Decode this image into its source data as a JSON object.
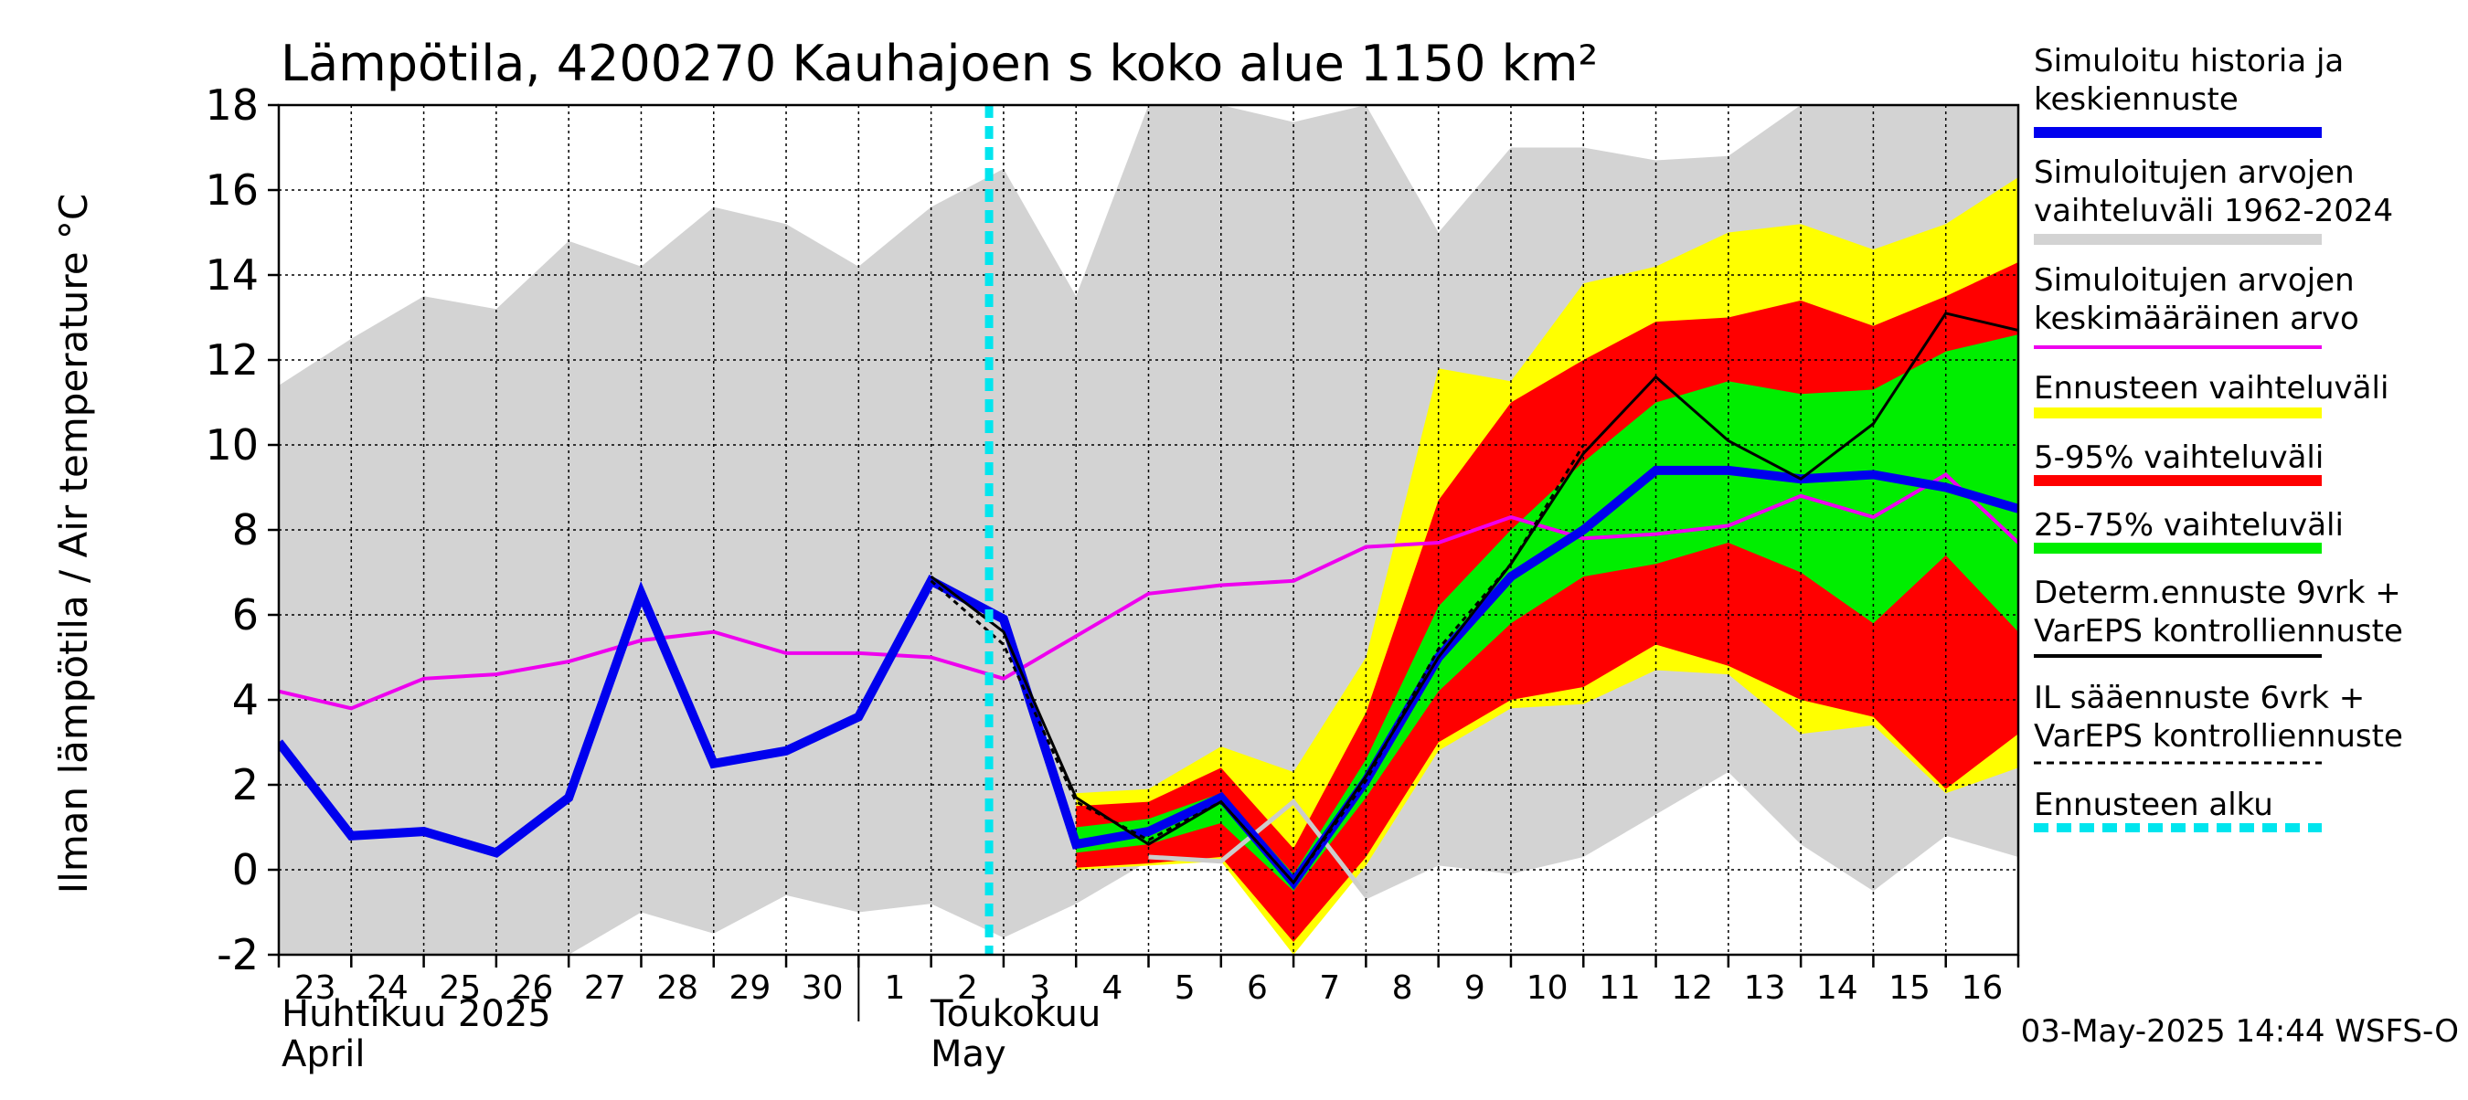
{
  "chart_data": {
    "type": "area",
    "title": "Lämpötila, 4200270 Kauhajoen s koko alue 1150 km²",
    "ylabel": "Ilman lämpötila / Air temperature    °C",
    "ylim": [
      -2,
      18
    ],
    "yticks": [
      -2,
      0,
      2,
      4,
      6,
      8,
      10,
      12,
      14,
      16,
      18
    ],
    "x_tick_labels": [
      "23",
      "24",
      "25",
      "26",
      "27",
      "28",
      "29",
      "30",
      "1",
      "2",
      "3",
      "4",
      "5",
      "6",
      "7",
      "8",
      "9",
      "10",
      "11",
      "12",
      "13",
      "14",
      "15",
      "16"
    ],
    "month_labels": {
      "april_fi": "Huhtikuu  2025",
      "april_en": "April",
      "may_fi": "Toukokuu",
      "may_en": "May"
    },
    "timestamp": "03-May-2025 14:44 WSFS-O",
    "forecast_start_day": 9.8,
    "history_range": {
      "x": [
        0,
        1,
        2,
        3,
        4,
        5,
        6,
        7,
        8,
        9,
        10,
        11,
        12,
        13,
        14,
        15,
        16,
        17,
        18,
        19,
        20,
        21,
        22,
        23,
        24
      ],
      "upper": [
        11.4,
        12.5,
        13.5,
        13.2,
        14.8,
        14.2,
        15.6,
        15.2,
        14.2,
        15.6,
        16.5,
        13.5,
        18,
        18,
        17.6,
        18,
        15,
        17,
        17,
        16.7,
        16.8,
        18,
        18,
        18,
        18
      ],
      "lower": [
        -2,
        -2,
        -2,
        -2,
        -2,
        -1,
        -1.5,
        -0.6,
        -1,
        -0.8,
        -1.6,
        -0.8,
        0.2,
        0.4,
        1.5,
        -0.7,
        0.1,
        -0.1,
        0.3,
        1.3,
        2.3,
        0.6,
        -0.5,
        0.8,
        0.3
      ]
    },
    "ensemble_bands": {
      "x": [
        11,
        12,
        13,
        14,
        15,
        16,
        17,
        18,
        19,
        20,
        21,
        22,
        23,
        24
      ],
      "yellow": {
        "upper": [
          1.8,
          1.9,
          2.9,
          2.3,
          5.0,
          11.8,
          11.5,
          13.8,
          14.2,
          15.0,
          15.2,
          14.6,
          15.2,
          16.3
        ],
        "lower": [
          0.0,
          0.1,
          0.2,
          -2.0,
          0.1,
          2.8,
          3.8,
          3.9,
          4.7,
          4.6,
          3.2,
          3.4,
          1.8,
          2.4
        ]
      },
      "red": {
        "upper": [
          1.5,
          1.6,
          2.4,
          0.5,
          3.7,
          8.7,
          11.0,
          12.0,
          12.9,
          13.0,
          13.4,
          12.8,
          13.5,
          14.3
        ],
        "lower": [
          0.05,
          0.15,
          0.3,
          -1.7,
          0.3,
          3.0,
          4.0,
          4.3,
          5.3,
          4.8,
          4.0,
          3.6,
          1.9,
          3.2
        ]
      },
      "green": {
        "upper": [
          1.0,
          1.2,
          1.8,
          -0.1,
          2.6,
          6.2,
          8.0,
          9.6,
          11.0,
          11.5,
          11.2,
          11.3,
          12.2,
          12.6
        ],
        "lower": [
          0.4,
          0.6,
          1.1,
          -0.5,
          1.7,
          4.2,
          5.8,
          6.9,
          7.2,
          7.7,
          7.0,
          5.8,
          7.4,
          5.6
        ]
      }
    },
    "series": [
      {
        "name": "Simuloitu historia ja keskiennuste",
        "x": [
          0,
          1,
          2,
          3,
          4,
          5,
          6,
          7,
          8,
          9,
          10,
          11,
          12,
          13,
          14,
          15,
          16,
          17,
          18,
          19,
          20,
          21,
          22,
          23,
          24
        ],
        "values": [
          3.0,
          0.8,
          0.9,
          0.4,
          1.7,
          6.5,
          2.5,
          2.8,
          3.6,
          6.8,
          5.9,
          0.6,
          0.9,
          1.7,
          -0.3,
          2.1,
          5.0,
          6.9,
          8.0,
          9.4,
          9.4,
          9.2,
          9.3,
          9.0,
          8.5
        ]
      },
      {
        "name": "Simuloitujen arvojen keskimääräinen arvo",
        "x": [
          0,
          1,
          2,
          3,
          4,
          5,
          6,
          7,
          8,
          9,
          10,
          11,
          12,
          13,
          14,
          15,
          16,
          17,
          18,
          19,
          20,
          21,
          22,
          23,
          24
        ],
        "values": [
          4.2,
          3.8,
          4.5,
          4.6,
          4.9,
          5.4,
          5.6,
          5.1,
          5.1,
          5.0,
          4.5,
          5.5,
          6.5,
          6.7,
          6.8,
          7.6,
          7.7,
          8.3,
          7.8,
          7.9,
          8.1,
          8.8,
          8.3,
          9.3,
          7.7
        ]
      },
      {
        "name": "Determ.ennuste 9vrk + VarEPS kontrolliennuste",
        "x": [
          9,
          10,
          11,
          12,
          13,
          14,
          15,
          16,
          17,
          18,
          19,
          20,
          21,
          22,
          23,
          24
        ],
        "values": [
          6.9,
          5.6,
          1.7,
          0.6,
          1.6,
          -0.3,
          2.2,
          5.0,
          7.2,
          9.8,
          11.6,
          10.1,
          9.2,
          10.5,
          13.1,
          12.7
        ]
      },
      {
        "name": "IL sääennuste 6vrk + VarEPS kontrolliennuste",
        "x": [
          9,
          10,
          11,
          12,
          13,
          14,
          15,
          16,
          17,
          18
        ],
        "values": [
          6.8,
          5.3,
          1.6,
          0.7,
          1.6,
          -0.3,
          2.1,
          5.2,
          7.2,
          10.0
        ]
      },
      {
        "name": "Ensemble member",
        "x": [
          12,
          13,
          14,
          15
        ],
        "values": [
          0.3,
          0.2,
          1.6,
          -0.6
        ]
      }
    ],
    "legend": [
      {
        "label": "Simuloitu historia ja keskiennuste",
        "color": "#0000ee",
        "style": "thick-line"
      },
      {
        "label": "Simuloitujen arvojen vaihteluväli 1962-2024",
        "color": "#d3d3d3",
        "style": "thick-line"
      },
      {
        "label": "Simuloitujen arvojen keskimääräinen arvo",
        "color": "#ee00ee",
        "style": "line"
      },
      {
        "label": "Ennusteen vaihteluväli",
        "color": "#ffff00",
        "style": "thick-line"
      },
      {
        "label": "5-95% vaihteluväli",
        "color": "#ff0000",
        "style": "thick-line"
      },
      {
        "label": "25-75% vaihteluväli",
        "color": "#00ee00",
        "style": "thick-line"
      },
      {
        "label": "Determ.ennuste 9vrk + VarEPS kontrolliennuste",
        "color": "#000000",
        "style": "line"
      },
      {
        "label": "IL sääennuste 6vrk  +  VarEPS kontrolliennuste",
        "color": "#000000",
        "style": "dashed"
      },
      {
        "label": "Ennusteen alku",
        "color": "#00e5ee",
        "style": "thick-dashed"
      }
    ],
    "colors": {
      "history_band": "#d3d3d3",
      "yellow": "#ffff00",
      "red": "#ff0000",
      "green": "#00ee00",
      "main_line": "#0000ee",
      "mean_line": "#ee00ee",
      "determ": "#000000",
      "forecast_start": "#00e5ee",
      "member": "#cccccc"
    }
  }
}
